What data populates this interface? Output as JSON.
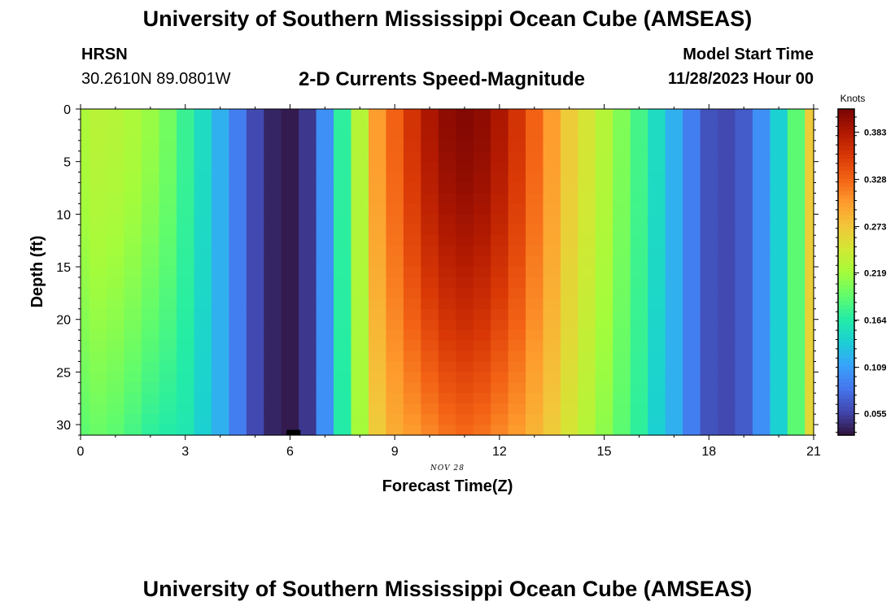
{
  "header": {
    "title": "University of Southern Mississippi Ocean Cube (AMSEAS)",
    "station_name": "HRSN",
    "station_coords": "30.2610N  89.0801W",
    "subtitle": "2-D Currents Speed-Magnitude",
    "model_start_label": "Model Start Time",
    "model_start_value": "11/28/2023 Hour 00"
  },
  "footer": {
    "title": "University of Southern Mississippi Ocean Cube (AMSEAS)"
  },
  "chart_data": {
    "type": "heatmap",
    "title": "2-D Currents Speed-Magnitude",
    "xlabel": "Forecast Time(Z)",
    "ylabel": "Depth (ft)",
    "date_label": "NOV 28",
    "xlim": [
      0,
      21
    ],
    "ylim": [
      0,
      31
    ],
    "x_ticks": [
      0,
      3,
      6,
      9,
      12,
      15,
      18,
      21
    ],
    "x_tick_labels": [
      "0",
      "3",
      "6",
      "9",
      "12",
      "15",
      "18",
      "21"
    ],
    "y_ticks": [
      0,
      5,
      10,
      15,
      20,
      25,
      30
    ],
    "y_tick_labels": [
      "0",
      "5",
      "10",
      "15",
      "20",
      "25",
      "30"
    ],
    "color_scale": {
      "title": "Knots",
      "min": 0.03,
      "max": 0.41,
      "ticks": [
        0.055,
        0.109,
        0.164,
        0.219,
        0.273,
        0.328,
        0.383
      ],
      "tick_labels": [
        "0.055",
        "0.109",
        "0.164",
        "0.219",
        "0.273",
        "0.328",
        "0.383"
      ],
      "colormap": [
        "#30123b",
        "#4145ab",
        "#4675ed",
        "#39a2fc",
        "#1bcfd4",
        "#24eca6",
        "#61fc6c",
        "#a4fc3b",
        "#d1e834",
        "#f3c63a",
        "#fe9b2d",
        "#f36315",
        "#d93806",
        "#b11901",
        "#7a0403"
      ]
    },
    "time_hours": [
      0,
      0.5,
      1,
      1.5,
      2,
      2.5,
      3,
      3.5,
      4,
      4.5,
      5,
      5.5,
      6,
      6.5,
      7,
      7.5,
      8,
      8.5,
      9,
      9.5,
      10,
      10.5,
      11,
      11.5,
      12,
      12.5,
      13,
      13.5,
      14,
      14.5,
      15,
      15.5,
      16,
      16.5,
      17,
      17.5,
      18,
      18.5,
      19,
      19.5,
      20,
      20.5,
      21
    ],
    "surface_speed_knots": [
      0.225,
      0.232,
      0.23,
      0.225,
      0.215,
      0.2,
      0.175,
      0.15,
      0.12,
      0.09,
      0.06,
      0.04,
      0.035,
      0.05,
      0.1,
      0.17,
      0.23,
      0.3,
      0.33,
      0.36,
      0.385,
      0.4,
      0.405,
      0.4,
      0.385,
      0.36,
      0.33,
      0.3,
      0.27,
      0.25,
      0.23,
      0.205,
      0.18,
      0.15,
      0.12,
      0.09,
      0.065,
      0.06,
      0.07,
      0.1,
      0.14,
      0.19,
      0.27
    ],
    "bottom_speed_knots": [
      0.19,
      0.195,
      0.19,
      0.18,
      0.17,
      0.165,
      0.16,
      0.14,
      0.12,
      0.09,
      0.06,
      0.04,
      0.035,
      0.05,
      0.1,
      0.165,
      0.22,
      0.27,
      0.29,
      0.3,
      0.31,
      0.32,
      0.325,
      0.32,
      0.31,
      0.3,
      0.285,
      0.27,
      0.25,
      0.23,
      0.21,
      0.19,
      0.17,
      0.14,
      0.12,
      0.09,
      0.065,
      0.06,
      0.07,
      0.1,
      0.14,
      0.19,
      0.26
    ],
    "depth_levels_ft": [
      0,
      1,
      2,
      3,
      4,
      5,
      6,
      7,
      8,
      9,
      10,
      11,
      12,
      13,
      14,
      15,
      16,
      17,
      18,
      19,
      20,
      21,
      22,
      23,
      24,
      25,
      26,
      27,
      28,
      29,
      30,
      31
    ],
    "seabed_marker": {
      "time_range": [
        5.9,
        6.3
      ],
      "depth_range": [
        30.5,
        31
      ],
      "color": "#000000"
    }
  }
}
